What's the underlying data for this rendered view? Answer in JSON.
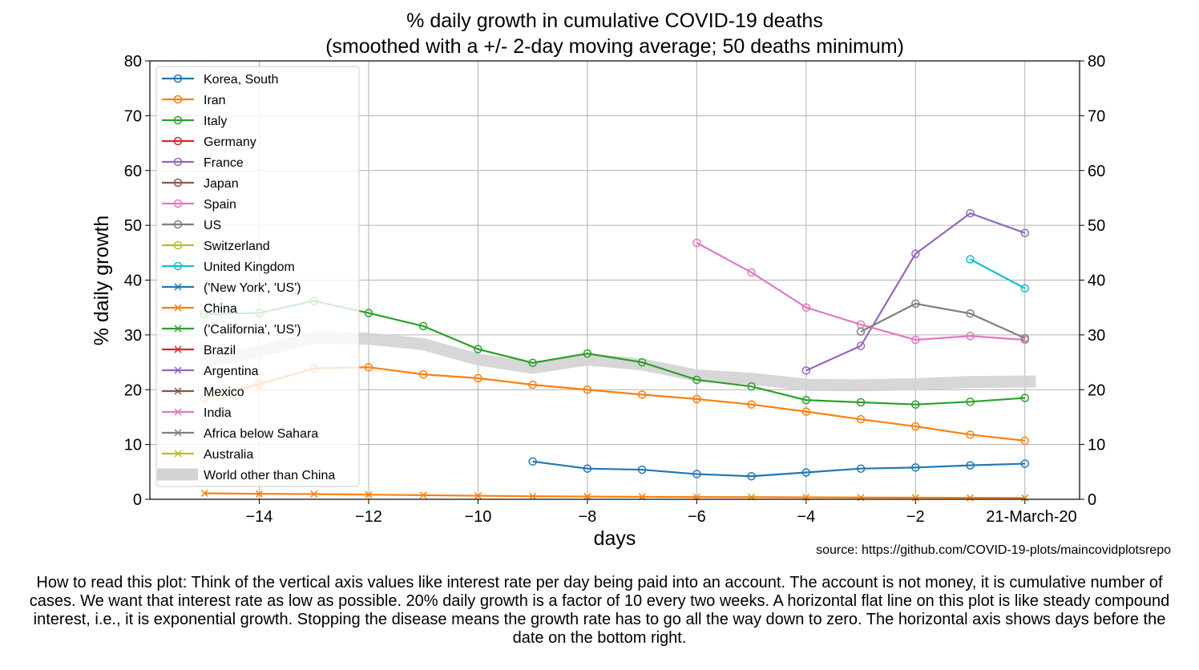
{
  "chart_data": {
    "type": "line",
    "title": "% daily growth in cumulative COVID-19 deaths",
    "subtitle": "(smoothed with a +/- 2-day moving average; 50 deaths minimum)",
    "xlabel": "days",
    "ylabel": "% daily growth",
    "xlim": [
      -16,
      1
    ],
    "ylim": [
      0,
      80
    ],
    "xticks": [
      -14,
      -12,
      -10,
      -8,
      -6,
      -4,
      -2
    ],
    "xtick_labels": [
      "−14",
      "−12",
      "−10",
      "−8",
      "−6",
      "−4",
      "−2"
    ],
    "yticks": [
      0,
      10,
      20,
      30,
      40,
      50,
      60,
      70,
      80
    ],
    "date_label": "21-March-20",
    "grid": true,
    "legend_position": "upper-left",
    "series": [
      {
        "name": "Korea, South",
        "color": "#1f77b4",
        "marker": "o",
        "x": [
          -9,
          -8,
          -7,
          -6,
          -5,
          -4,
          -3,
          -2,
          -1,
          0
        ],
        "y": [
          6.9,
          5.6,
          5.4,
          4.6,
          4.2,
          4.9,
          5.6,
          5.8,
          6.2,
          6.5
        ]
      },
      {
        "name": "Iran",
        "color": "#ff7f0e",
        "marker": "o",
        "x": [
          -15,
          -14,
          -13,
          -12,
          -11,
          -10,
          -9,
          -8,
          -7,
          -6,
          -5,
          -4,
          -3,
          -2,
          -1,
          0
        ],
        "y": [
          18.5,
          21.0,
          23.9,
          24.1,
          22.8,
          22.1,
          20.9,
          20.0,
          19.1,
          18.3,
          17.3,
          16.0,
          14.6,
          13.3,
          11.8,
          10.7
        ]
      },
      {
        "name": "Italy",
        "color": "#2ca02c",
        "marker": "o",
        "x": [
          -15,
          -14,
          -13,
          -12,
          -11,
          -10,
          -9,
          -8,
          -7,
          -6,
          -5,
          -4,
          -3,
          -2,
          -1,
          0
        ],
        "y": [
          33.8,
          34.0,
          36.2,
          34.0,
          31.6,
          27.4,
          24.9,
          26.6,
          25.0,
          21.8,
          20.6,
          18.1,
          17.7,
          17.3,
          17.8,
          18.5
        ]
      },
      {
        "name": "Germany",
        "color": "#d62728",
        "marker": "o",
        "x": [],
        "y": []
      },
      {
        "name": "France",
        "color": "#9467bd",
        "marker": "o",
        "x": [
          -4,
          -3,
          -2,
          -1,
          0
        ],
        "y": [
          23.5,
          28.0,
          44.8,
          52.2,
          48.6
        ]
      },
      {
        "name": "Japan",
        "color": "#8c564b",
        "marker": "o",
        "x": [],
        "y": []
      },
      {
        "name": "Spain",
        "color": "#e377c2",
        "marker": "o",
        "x": [
          -6,
          -5,
          -4,
          -3,
          -2,
          -1,
          0
        ],
        "y": [
          46.8,
          41.4,
          35.0,
          31.9,
          29.1,
          29.8,
          29.1
        ]
      },
      {
        "name": "US",
        "color": "#7f7f7f",
        "marker": "o",
        "x": [
          -3,
          -2,
          -1,
          0
        ],
        "y": [
          30.6,
          35.7,
          33.9,
          29.4
        ]
      },
      {
        "name": "Switzerland",
        "color": "#bcbd22",
        "marker": "o",
        "x": [],
        "y": []
      },
      {
        "name": "United Kingdom",
        "color": "#17becf",
        "marker": "o",
        "x": [
          -1,
          0
        ],
        "y": [
          43.8,
          38.5
        ]
      },
      {
        "name": "('New York', 'US')",
        "color": "#1f77b4",
        "marker": "x",
        "x": [],
        "y": []
      },
      {
        "name": "China",
        "color": "#ff7f0e",
        "marker": "x",
        "x": [
          -15,
          -14,
          -13,
          -12,
          -11,
          -10,
          -9,
          -8,
          -7,
          -6,
          -5,
          -4,
          -3,
          -2,
          -1,
          0
        ],
        "y": [
          1.1,
          1.0,
          0.95,
          0.85,
          0.75,
          0.65,
          0.55,
          0.5,
          0.45,
          0.42,
          0.4,
          0.37,
          0.33,
          0.3,
          0.27,
          0.25
        ]
      },
      {
        "name": "('California', 'US')",
        "color": "#2ca02c",
        "marker": "x",
        "x": [],
        "y": []
      },
      {
        "name": "Brazil",
        "color": "#d62728",
        "marker": "x",
        "x": [],
        "y": []
      },
      {
        "name": "Argentina",
        "color": "#9467bd",
        "marker": "x",
        "x": [],
        "y": []
      },
      {
        "name": "Mexico",
        "color": "#8c564b",
        "marker": "x",
        "x": [],
        "y": []
      },
      {
        "name": "India",
        "color": "#e377c2",
        "marker": "x",
        "x": [],
        "y": []
      },
      {
        "name": "Africa below Sahara",
        "color": "#7f7f7f",
        "marker": "x",
        "x": [],
        "y": []
      },
      {
        "name": "Australia",
        "color": "#bcbd22",
        "marker": "x",
        "x": [],
        "y": []
      },
      {
        "name": "World other than China",
        "color": "#d3d3d3",
        "marker": "band",
        "x": [
          -15,
          -14,
          -13,
          -12,
          -11,
          -10,
          -9,
          -8,
          -7,
          -6,
          -5,
          -4,
          -3,
          -2,
          -1,
          0.2
        ],
        "y": [
          25.0,
          27.0,
          29.5,
          29.3,
          28.3,
          25.5,
          24.0,
          25.5,
          24.6,
          22.6,
          22.0,
          20.9,
          20.8,
          21.0,
          21.4,
          21.5
        ]
      }
    ]
  },
  "source": "source: https://github.com/COVID-19-plots/maincovidplotsrepo",
  "caption": "How to read this plot: Think of the vertical axis values like interest rate per day being paid into an account. The account is not money, it is cumulative number of cases. We want that interest rate as low as possible.  20% daily growth is a factor of 10 every two weeks. A horizontal flat line on this plot is like steady compound interest, i.e., it is exponential growth. Stopping the disease means the growth rate has to go all the way down to zero. The horizontal axis shows days before the date on the bottom right."
}
